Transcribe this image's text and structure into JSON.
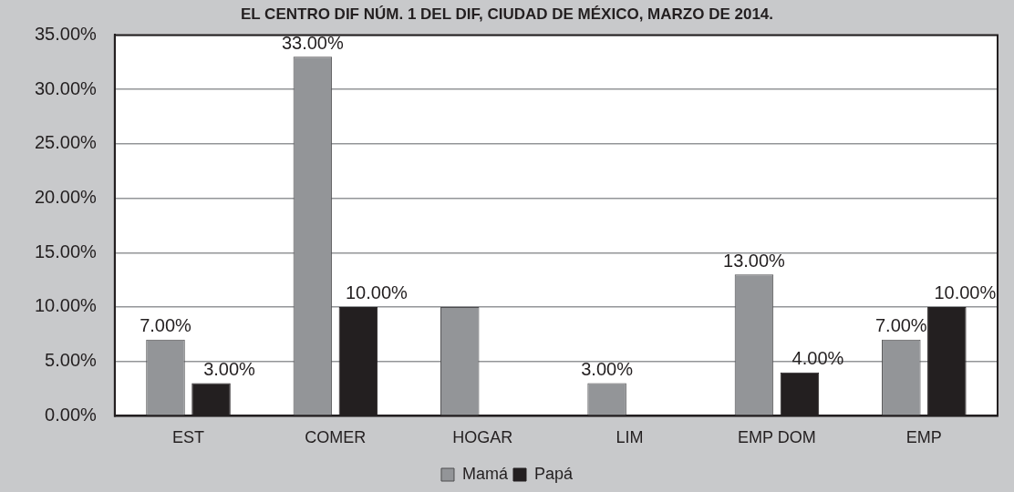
{
  "chart_data": {
    "type": "bar",
    "title": "EL CENTRO DIF NÚM. 1 DEL DIF, CIUDAD DE MÉXICO, MARZO DE 2014.",
    "categories": [
      "EST",
      "COMER",
      "HOGAR",
      "LIM",
      "EMP DOM",
      "EMP"
    ],
    "series": [
      {
        "name": "Mamá",
        "color": "#939598",
        "values": [
          7,
          33,
          10,
          3,
          13,
          7
        ],
        "value_labels": [
          "7.00%",
          "33.00%",
          null,
          "3.00%",
          "13.00%",
          "7.00%"
        ]
      },
      {
        "name": "Papá",
        "color": "#231f20",
        "values": [
          3,
          10,
          null,
          null,
          4,
          10
        ],
        "value_labels": [
          "3.00%",
          "10.00%",
          null,
          null,
          "4.00%",
          "10.00%"
        ]
      }
    ],
    "ylim": [
      0,
      35
    ],
    "yticks": [
      {
        "value": 0,
        "label": "0.00%"
      },
      {
        "value": 5,
        "label": "5.00%"
      },
      {
        "value": 10,
        "label": "10.00%"
      },
      {
        "value": 15,
        "label": "15.00%"
      },
      {
        "value": 20,
        "label": "20.00%"
      },
      {
        "value": 25,
        "label": "25.00%"
      },
      {
        "value": 30,
        "label": "30.00%"
      },
      {
        "value": 35,
        "label": "35.00%"
      }
    ],
    "grid": "y",
    "legend": "bottom"
  }
}
